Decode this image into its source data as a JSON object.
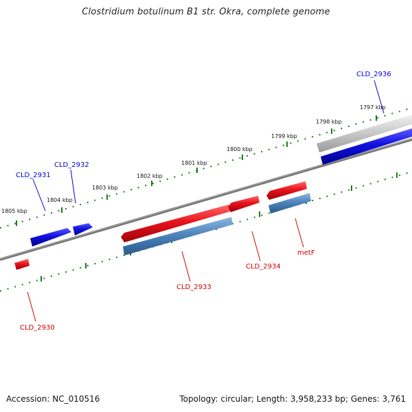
{
  "title": "Clostridium botulinum B1 str. Okra, complete genome",
  "footer": {
    "accession": "Accession: NC_010516",
    "topology": "Topology: circular; Length: 3,958,233 bp; Genes: 3,761"
  },
  "colors": {
    "forward_gene": "#e8141c",
    "reverse_gene": "#1010e0",
    "rna_gene": "#4a80b8",
    "pseudo_gene": "#c8c8c8",
    "backbone": "#777777",
    "tick": "#1a7a1a",
    "label_forward": "#0000cc",
    "label_reverse": "#cc0000"
  },
  "scale": {
    "ticks_kbp": [
      "1805 kbp",
      "1804 kbp",
      "1803 kbp",
      "1802 kbp",
      "1801 kbp",
      "1800 kbp",
      "1799 kbp",
      "1798 kbp",
      "1797 kbp"
    ]
  },
  "genes": {
    "CLD_2936": "CLD_2936",
    "CLD_2932": "CLD_2932",
    "CLD_2931": "CLD_2931",
    "CLD_2933": "CLD_2933",
    "CLD_2934": "CLD_2934",
    "metF": "metF",
    "CLD_2930": "CLD_2930"
  }
}
